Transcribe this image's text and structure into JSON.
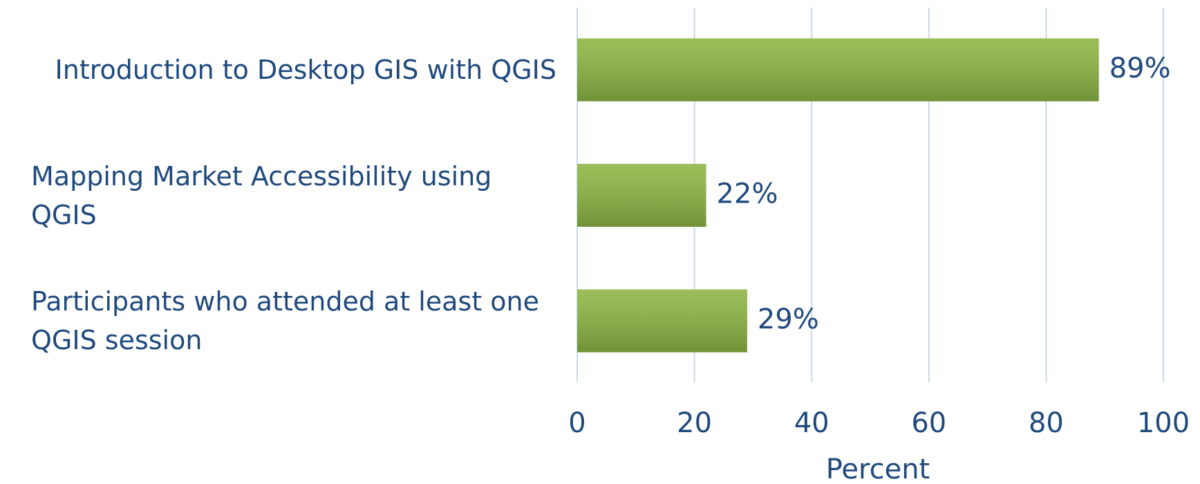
{
  "chart_data": {
    "type": "barh",
    "categories": [
      "Introduction to Desktop GIS with QGIS",
      "Mapping Market Accessibility using QGIS",
      "Participants who attended at least one QGIS session"
    ],
    "values": [
      89,
      22,
      29
    ],
    "value_labels": [
      "89%",
      "22%",
      "29%"
    ],
    "color": "#8db543",
    "xlabel": "Percent",
    "xlim": [
      0,
      100
    ],
    "xticks": [
      0,
      20,
      40,
      60,
      80,
      100
    ],
    "grid": true
  }
}
